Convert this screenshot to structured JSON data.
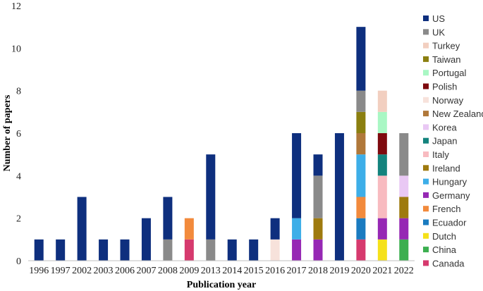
{
  "chart_data": {
    "type": "bar",
    "stacked": true,
    "xlabel": "Publication year",
    "ylabel": "Number of papers",
    "ylim": [
      0,
      12
    ],
    "yticks": [
      0,
      2,
      4,
      6,
      8,
      10,
      12
    ],
    "grid": false,
    "legend_position": "right",
    "categories": [
      "1996",
      "1997",
      "2002",
      "2003",
      "2006",
      "2007",
      "2008",
      "2009",
      "2013",
      "2014",
      "2015",
      "2016",
      "2017",
      "2018",
      "2019",
      "2020",
      "2021",
      "2022"
    ],
    "series": [
      {
        "name": "Canada",
        "color": "#D63A6E",
        "values": [
          0,
          0,
          0,
          0,
          0,
          0,
          0,
          1,
          0,
          0,
          0,
          0,
          0,
          0,
          0,
          1,
          0,
          0
        ]
      },
      {
        "name": "China",
        "color": "#3CAF50",
        "values": [
          0,
          0,
          0,
          0,
          0,
          0,
          0,
          0,
          0,
          0,
          0,
          0,
          0,
          0,
          0,
          0,
          0,
          1
        ]
      },
      {
        "name": "Dutch",
        "color": "#F5E11A",
        "values": [
          0,
          0,
          0,
          0,
          0,
          0,
          0,
          0,
          0,
          0,
          0,
          0,
          0,
          0,
          0,
          0,
          1,
          0
        ]
      },
      {
        "name": "Ecuador",
        "color": "#1A7BC0",
        "values": [
          0,
          0,
          0,
          0,
          0,
          0,
          0,
          0,
          0,
          0,
          0,
          0,
          0,
          0,
          0,
          1,
          0,
          0
        ]
      },
      {
        "name": "French",
        "color": "#F28A3C",
        "values": [
          0,
          0,
          0,
          0,
          0,
          0,
          0,
          1,
          0,
          0,
          0,
          0,
          0,
          0,
          0,
          1,
          0,
          0
        ]
      },
      {
        "name": "Germany",
        "color": "#9628B4",
        "values": [
          0,
          0,
          0,
          0,
          0,
          0,
          0,
          0,
          0,
          0,
          0,
          0,
          1,
          1,
          0,
          0,
          1,
          1
        ]
      },
      {
        "name": "Hungary",
        "color": "#3DAEE8",
        "values": [
          0,
          0,
          0,
          0,
          0,
          0,
          0,
          0,
          0,
          0,
          0,
          0,
          1,
          0,
          0,
          2,
          0,
          0
        ]
      },
      {
        "name": "Ireland",
        "color": "#9E7A0E",
        "values": [
          0,
          0,
          0,
          0,
          0,
          0,
          0,
          0,
          0,
          0,
          0,
          0,
          0,
          1,
          0,
          0,
          0,
          1
        ]
      },
      {
        "name": "Italy",
        "color": "#F8BBC0",
        "values": [
          0,
          0,
          0,
          0,
          0,
          0,
          0,
          0,
          0,
          0,
          0,
          0,
          0,
          0,
          0,
          0,
          2,
          0
        ]
      },
      {
        "name": "Japan",
        "color": "#13837D",
        "values": [
          0,
          0,
          0,
          0,
          0,
          0,
          0,
          0,
          0,
          0,
          0,
          0,
          0,
          0,
          0,
          0,
          1,
          0
        ]
      },
      {
        "name": "Korea",
        "color": "#E9C8F4",
        "values": [
          0,
          0,
          0,
          0,
          0,
          0,
          0,
          0,
          0,
          0,
          0,
          0,
          0,
          0,
          0,
          0,
          0,
          1
        ]
      },
      {
        "name": "New Zealand",
        "color": "#B0783A",
        "values": [
          0,
          0,
          0,
          0,
          0,
          0,
          0,
          0,
          0,
          0,
          0,
          0,
          0,
          0,
          0,
          1,
          0,
          0
        ]
      },
      {
        "name": "Norway",
        "color": "#F7E2DB",
        "values": [
          0,
          0,
          0,
          0,
          0,
          0,
          0,
          0,
          0,
          0,
          0,
          1,
          0,
          0,
          0,
          0,
          0,
          0
        ]
      },
      {
        "name": "Polish",
        "color": "#7E0A0E",
        "values": [
          0,
          0,
          0,
          0,
          0,
          0,
          0,
          0,
          0,
          0,
          0,
          0,
          0,
          0,
          0,
          0,
          1,
          0
        ]
      },
      {
        "name": "Portugal",
        "color": "#A9F7C4",
        "values": [
          0,
          0,
          0,
          0,
          0,
          0,
          0,
          0,
          0,
          0,
          0,
          0,
          0,
          0,
          0,
          0,
          1,
          0
        ]
      },
      {
        "name": "Taiwan",
        "color": "#8B7F10",
        "values": [
          0,
          0,
          0,
          0,
          0,
          0,
          0,
          0,
          0,
          0,
          0,
          0,
          0,
          0,
          0,
          1,
          0,
          0
        ]
      },
      {
        "name": "Turkey",
        "color": "#F2CFC0",
        "values": [
          0,
          0,
          0,
          0,
          0,
          0,
          0,
          0,
          0,
          0,
          0,
          0,
          0,
          0,
          0,
          0,
          1,
          0
        ]
      },
      {
        "name": "UK",
        "color": "#8A8A8A",
        "values": [
          0,
          0,
          0,
          0,
          0,
          0,
          1,
          0,
          1,
          0,
          0,
          0,
          0,
          2,
          0,
          1,
          0,
          2
        ]
      },
      {
        "name": "US",
        "color": "#0E2F7E",
        "values": [
          1,
          1,
          3,
          1,
          1,
          2,
          2,
          0,
          4,
          1,
          1,
          1,
          4,
          1,
          6,
          3,
          0,
          0
        ]
      }
    ]
  }
}
